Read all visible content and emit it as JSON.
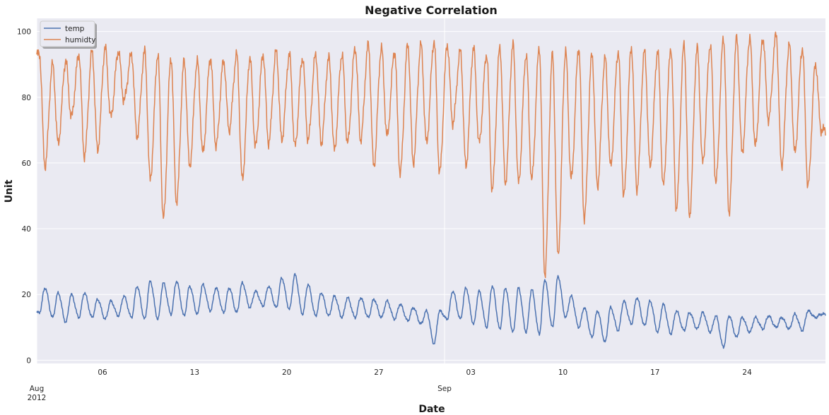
{
  "colors": {
    "background": "#eaeaf2",
    "grid": "#ffffff",
    "temp": "#4c72b0",
    "humidity": "#dd8452"
  },
  "chart_data": {
    "type": "line",
    "title": "Negative Correlation",
    "xlabel": "Date",
    "ylabel": "Unit",
    "grid": true,
    "legend_position": "top-left",
    "xlim": [
      "2012-08-01",
      "2012-09-29"
    ],
    "ylim": [
      -1,
      104
    ],
    "y_ticks": [
      0,
      20,
      40,
      60,
      80,
      100
    ],
    "x_ticks": [
      {
        "date": "2012-08-01",
        "label": "Aug",
        "sublabel": "2012",
        "major": true
      },
      {
        "date": "2012-08-06",
        "label": "06",
        "major": false
      },
      {
        "date": "2012-08-13",
        "label": "13",
        "major": false
      },
      {
        "date": "2012-08-20",
        "label": "20",
        "major": false
      },
      {
        "date": "2012-08-27",
        "label": "27",
        "major": false
      },
      {
        "date": "2012-09-01",
        "label": "Sep",
        "major": true
      },
      {
        "date": "2012-09-03",
        "label": "03",
        "major": false
      },
      {
        "date": "2012-09-10",
        "label": "10",
        "major": false
      },
      {
        "date": "2012-09-17",
        "label": "17",
        "major": false
      },
      {
        "date": "2012-09-24",
        "label": "24",
        "major": false
      }
    ],
    "series": [
      {
        "name": "temp",
        "color": "#4c72b0",
        "daily_min": [
          "2012-08-01:14.5",
          "2012-08-02:13",
          "2012-08-03:11.5",
          "2012-08-04:13",
          "2012-08-05:13",
          "2012-08-06:12.5",
          "2012-08-07:13.5",
          "2012-08-08:13",
          "2012-08-09:12.5",
          "2012-08-10:12.5",
          "2012-08-11:14",
          "2012-08-12:13.5",
          "2012-08-13:14",
          "2012-08-14:15",
          "2012-08-15:14.5",
          "2012-08-16:14.5",
          "2012-08-17:16",
          "2012-08-18:16.5",
          "2012-08-19:16",
          "2012-08-20:15.5",
          "2012-08-21:14",
          "2012-08-22:13.5",
          "2012-08-23:13.5",
          "2012-08-24:13",
          "2012-08-25:13",
          "2012-08-26:13",
          "2012-08-27:13",
          "2012-08-28:12.5",
          "2012-08-29:12",
          "2012-08-30:11",
          "2012-08-31:5",
          "2012-09-01:12.5",
          "2012-09-02:12.5",
          "2012-09-03:11",
          "2012-09-04:10",
          "2012-09-05:9.5",
          "2012-09-06:8.5",
          "2012-09-07:8.5",
          "2012-09-08:8",
          "2012-09-09:10",
          "2012-09-10:13",
          "2012-09-11:10",
          "2012-09-12:7",
          "2012-09-13:5.5",
          "2012-09-14:9",
          "2012-09-15:11",
          "2012-09-16:10.5",
          "2012-09-17:8.5",
          "2012-09-18:8",
          "2012-09-19:9",
          "2012-09-20:9.5",
          "2012-09-21:8.5",
          "2012-09-22:4",
          "2012-09-23:7",
          "2012-09-24:8.5",
          "2012-09-25:9.5",
          "2012-09-26:10",
          "2012-09-27:9.5",
          "2012-09-28:9",
          "2012-09-29:13"
        ],
        "daily_max": [
          "2012-08-01:22",
          "2012-08-02:20.5",
          "2012-08-03:20",
          "2012-08-04:20.5",
          "2012-08-05:18.5",
          "2012-08-06:18",
          "2012-08-07:19.5",
          "2012-08-08:22.5",
          "2012-08-09:24",
          "2012-08-10:23.5",
          "2012-08-11:24",
          "2012-08-12:22.5",
          "2012-08-13:23",
          "2012-08-14:22",
          "2012-08-15:22",
          "2012-08-16:23.5",
          "2012-08-17:21",
          "2012-08-18:22.5",
          "2012-08-19:25",
          "2012-08-20:26",
          "2012-08-21:23",
          "2012-08-22:20.5",
          "2012-08-23:19.5",
          "2012-08-24:19",
          "2012-08-25:19",
          "2012-08-26:18.5",
          "2012-08-27:18",
          "2012-08-28:17",
          "2012-08-29:16",
          "2012-08-30:15",
          "2012-08-31:15",
          "2012-09-01:21",
          "2012-09-02:22",
          "2012-09-03:21",
          "2012-09-04:22.5",
          "2012-09-05:22",
          "2012-09-06:22",
          "2012-09-07:21.5",
          "2012-09-08:24.5",
          "2012-09-09:25.5",
          "2012-09-10:19.5",
          "2012-09-11:16",
          "2012-09-12:15",
          "2012-09-13:16",
          "2012-09-14:18",
          "2012-09-15:19",
          "2012-09-16:18",
          "2012-09-17:17",
          "2012-09-18:15",
          "2012-09-19:14.5",
          "2012-09-20:14.5",
          "2012-09-21:13.5",
          "2012-09-22:13.5",
          "2012-09-23:13",
          "2012-09-24:13",
          "2012-09-25:13.5",
          "2012-09-26:13",
          "2012-09-27:14",
          "2012-09-28:15",
          "2012-09-29:14"
        ]
      },
      {
        "name": "humidty",
        "color": "#dd8452",
        "daily_min": [
          "2012-08-01:59",
          "2012-08-02:66",
          "2012-08-03:74",
          "2012-08-04:62",
          "2012-08-05:64",
          "2012-08-06:74",
          "2012-08-07:79",
          "2012-08-08:68",
          "2012-08-09:55",
          "2012-08-10:43",
          "2012-08-11:48",
          "2012-08-12:59",
          "2012-08-13:63",
          "2012-08-14:65",
          "2012-08-15:70",
          "2012-08-16:55",
          "2012-08-17:65",
          "2012-08-18:66",
          "2012-08-19:67",
          "2012-08-20:65",
          "2012-08-21:67",
          "2012-08-22:66",
          "2012-08-23:64",
          "2012-08-24:66",
          "2012-08-25:67",
          "2012-08-26:59",
          "2012-08-27:68",
          "2012-08-28:57",
          "2012-08-29:60",
          "2012-08-30:66",
          "2012-08-31:57",
          "2012-09-01:72",
          "2012-09-02:59",
          "2012-09-03:66",
          "2012-09-04:52",
          "2012-09-05:54",
          "2012-09-06:54",
          "2012-09-07:55",
          "2012-09-08:26",
          "2012-09-09:32",
          "2012-09-10:55",
          "2012-09-11:43",
          "2012-09-12:53",
          "2012-09-13:59",
          "2012-09-14:50",
          "2012-09-15:52",
          "2012-09-16:59",
          "2012-09-17:53",
          "2012-09-18:46",
          "2012-09-19:44",
          "2012-09-20:60",
          "2012-09-21:54",
          "2012-09-22:45",
          "2012-09-23:63",
          "2012-09-24:65",
          "2012-09-25:73",
          "2012-09-26:59",
          "2012-09-27:63",
          "2012-09-28:53",
          "2012-09-29:70"
        ],
        "daily_max": [
          "2012-08-01:93",
          "2012-08-02:90",
          "2012-08-03:91",
          "2012-08-04:93",
          "2012-08-05:94",
          "2012-08-06:95",
          "2012-08-07:94",
          "2012-08-08:93",
          "2012-08-09:94",
          "2012-08-10:93",
          "2012-08-11:92",
          "2012-08-12:91",
          "2012-08-13:91",
          "2012-08-14:92",
          "2012-08-15:91",
          "2012-08-16:93",
          "2012-08-17:92",
          "2012-08-18:93",
          "2012-08-19:94",
          "2012-08-20:93",
          "2012-08-21:92",
          "2012-08-22:93",
          "2012-08-23:92",
          "2012-08-24:93",
          "2012-08-25:95",
          "2012-08-26:96",
          "2012-08-27:95",
          "2012-08-28:94",
          "2012-08-29:96",
          "2012-08-30:96",
          "2012-08-31:97",
          "2012-09-01:96",
          "2012-09-02:94",
          "2012-09-03:95",
          "2012-09-04:93",
          "2012-09-05:95",
          "2012-09-06:96",
          "2012-09-07:93",
          "2012-09-08:95",
          "2012-09-09:93",
          "2012-09-10:94",
          "2012-09-11:95",
          "2012-09-12:93",
          "2012-09-13:92",
          "2012-09-14:94",
          "2012-09-15:95",
          "2012-09-16:94",
          "2012-09-17:94",
          "2012-09-18:95",
          "2012-09-19:96",
          "2012-09-20:95",
          "2012-09-21:96",
          "2012-09-22:98",
          "2012-09-23:98",
          "2012-09-24:98",
          "2012-09-25:98",
          "2012-09-26:99",
          "2012-09-27:96",
          "2012-09-28:95",
          "2012-09-29:90"
        ]
      }
    ]
  }
}
